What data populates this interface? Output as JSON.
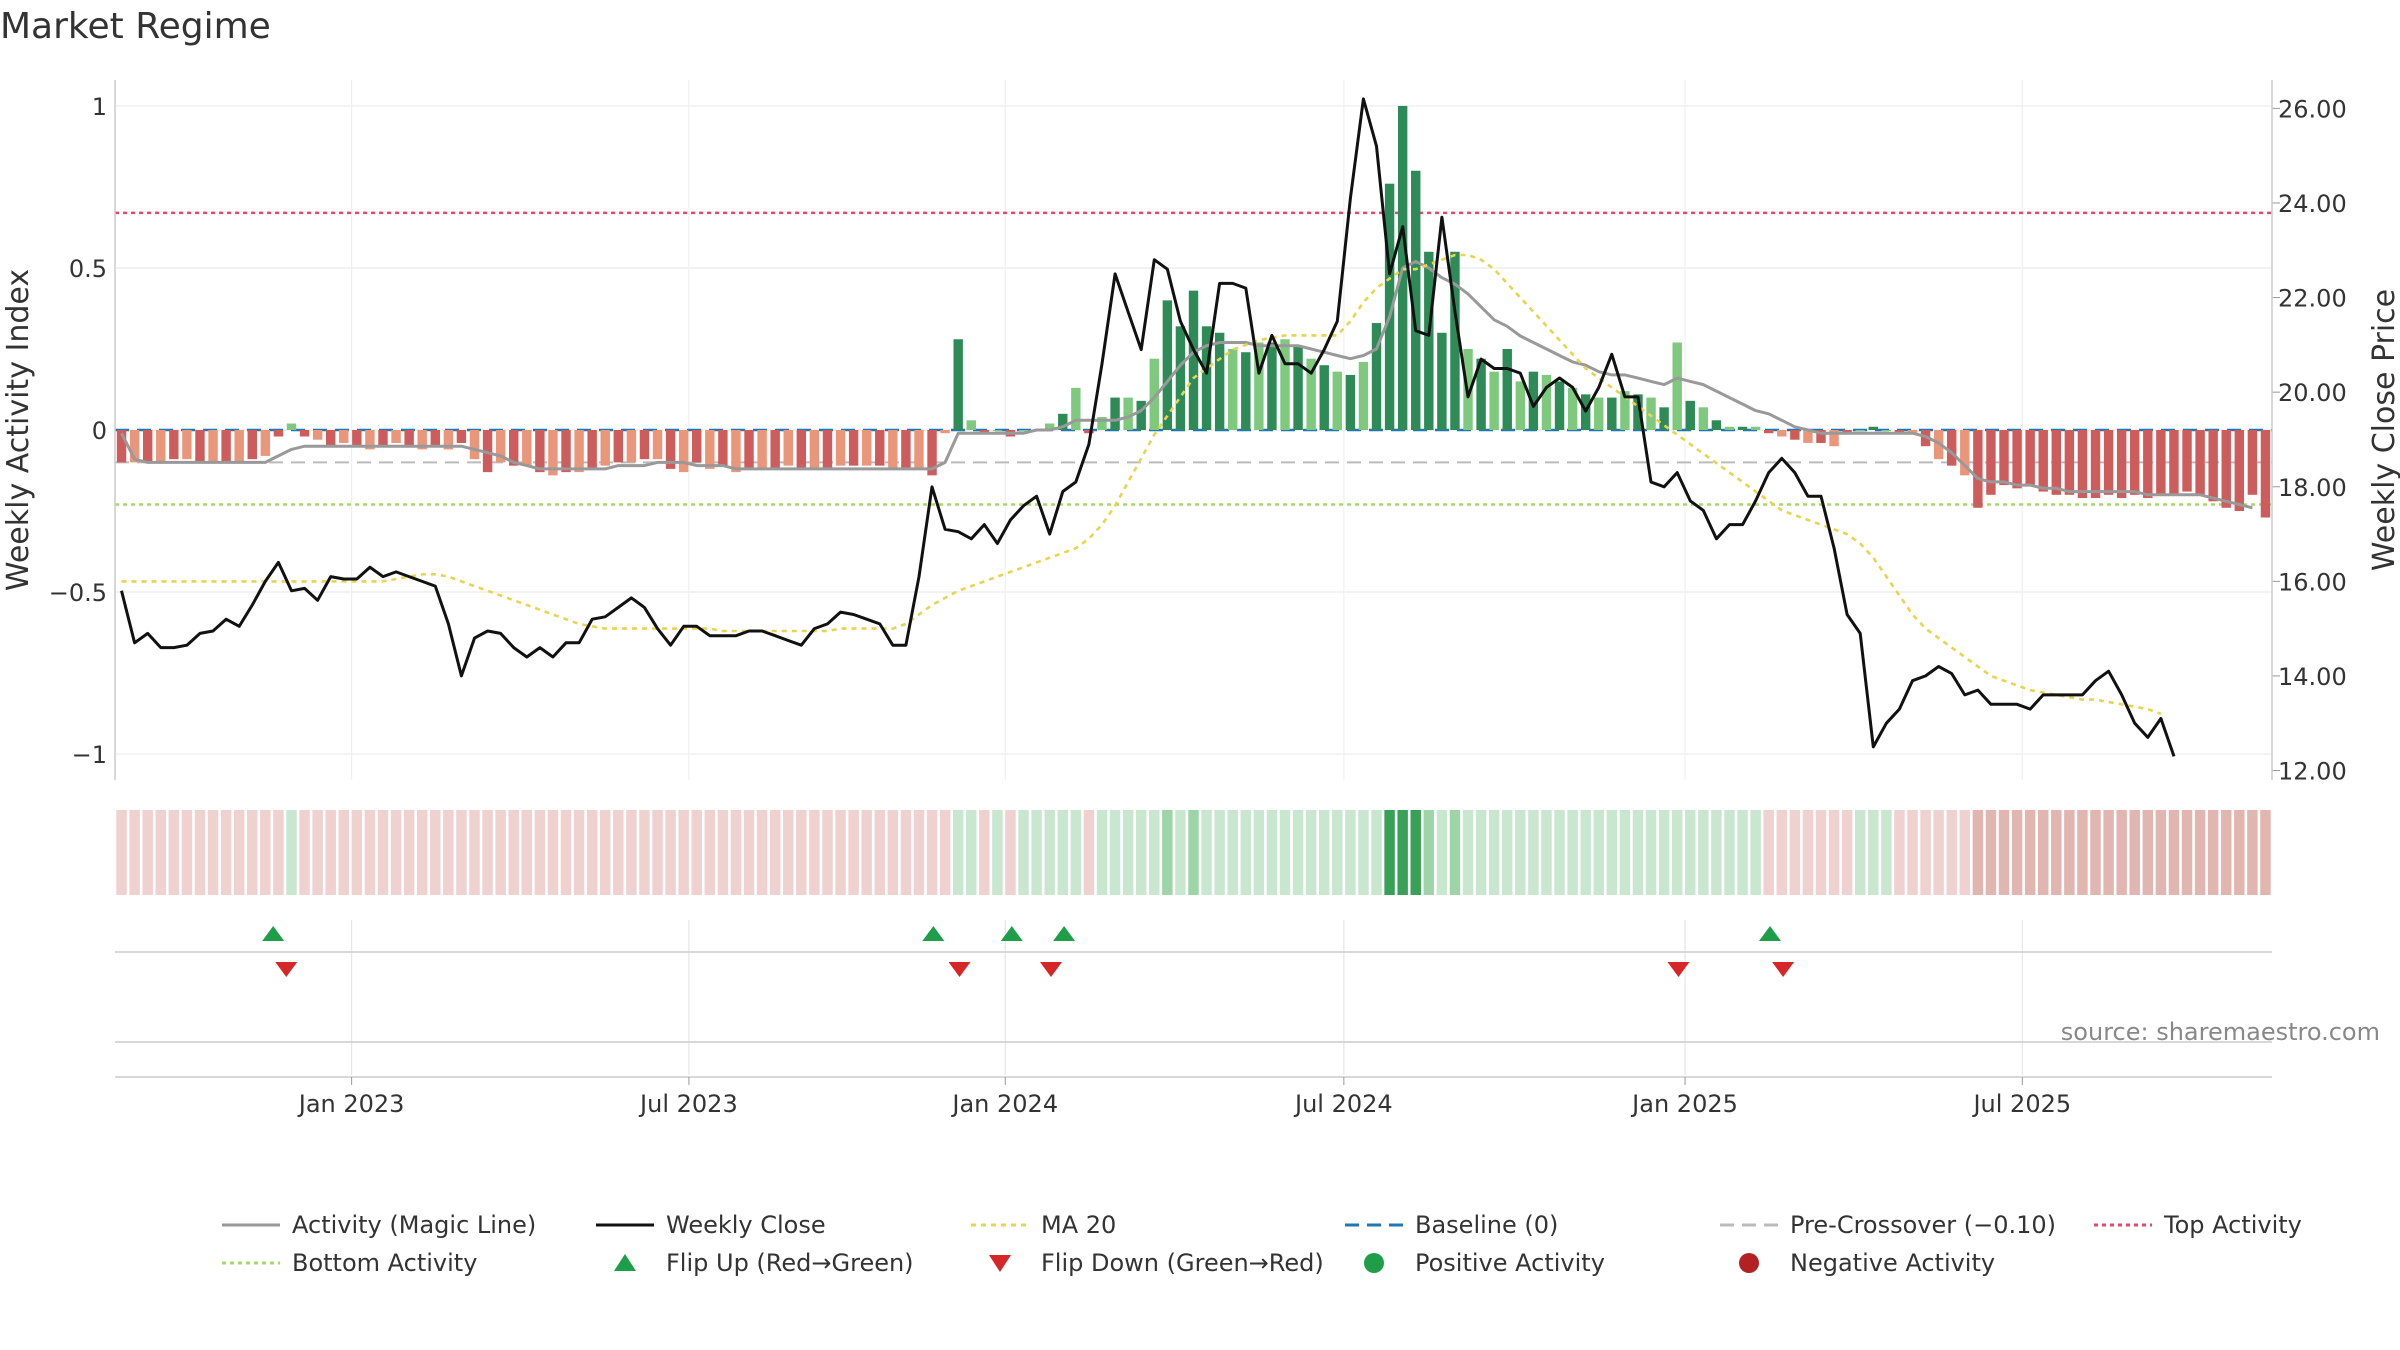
{
  "chart_data": {
    "type": "bar",
    "title": "Market Regime",
    "ylabel": "Weekly Activity Index",
    "y2label": "Weekly Close Price",
    "source": "source: sharemaestro.com",
    "ylim": [
      -1.08,
      1.08
    ],
    "y2lim": [
      11.8,
      26.6
    ],
    "yticks": [
      {
        "v": 1,
        "label": "1"
      },
      {
        "v": 0.5,
        "label": "0.5"
      },
      {
        "v": 0,
        "label": "0"
      },
      {
        "v": -0.5,
        "label": "−0.5"
      },
      {
        "v": -1,
        "label": "−1"
      }
    ],
    "y2ticks": [
      {
        "v": 26,
        "label": "26.00"
      },
      {
        "v": 24,
        "label": "24.00"
      },
      {
        "v": 22,
        "label": "22.00"
      },
      {
        "v": 20,
        "label": "20.00"
      },
      {
        "v": 18,
        "label": "18.00"
      },
      {
        "v": 16,
        "label": "16.00"
      },
      {
        "v": 14,
        "label": "14.00"
      },
      {
        "v": 12,
        "label": "12.00"
      }
    ],
    "xticks": [
      {
        "w": 17.6,
        "label": "Jan 2023"
      },
      {
        "w": 43.4,
        "label": "Jul 2023"
      },
      {
        "w": 67.6,
        "label": "Jan 2024"
      },
      {
        "w": 93.5,
        "label": "Jul 2024"
      },
      {
        "w": 119.6,
        "label": "Jan 2025"
      },
      {
        "w": 145.4,
        "label": "Jul 2025"
      }
    ],
    "reference_lines": {
      "top": 0.67,
      "bottom": -0.23,
      "pre_crossover": -0.1,
      "baseline": 0
    },
    "activity": [
      -0.1,
      -0.1,
      -0.1,
      -0.1,
      -0.09,
      -0.09,
      -0.1,
      -0.1,
      -0.1,
      -0.1,
      -0.09,
      -0.08,
      -0.02,
      0.02,
      -0.02,
      -0.03,
      -0.05,
      -0.04,
      -0.05,
      -0.06,
      -0.05,
      -0.04,
      -0.05,
      -0.06,
      -0.05,
      -0.06,
      -0.04,
      -0.09,
      -0.13,
      -0.1,
      -0.11,
      -0.11,
      -0.13,
      -0.14,
      -0.13,
      -0.13,
      -0.12,
      -0.11,
      -0.1,
      -0.1,
      -0.09,
      -0.09,
      -0.12,
      -0.13,
      -0.1,
      -0.12,
      -0.11,
      -0.13,
      -0.12,
      -0.12,
      -0.12,
      -0.11,
      -0.12,
      -0.12,
      -0.12,
      -0.11,
      -0.11,
      -0.11,
      -0.11,
      -0.12,
      -0.12,
      -0.12,
      -0.14,
      -0.01,
      0.28,
      0.03,
      -0.01,
      0,
      -0.02,
      0,
      0,
      0.02,
      0.05,
      0.13,
      -0.01,
      0.04,
      0.1,
      0.1,
      0.09,
      0.22,
      0.4,
      0.32,
      0.43,
      0.32,
      0.3,
      0.25,
      0.24,
      0.27,
      0.27,
      0.28,
      0.26,
      0.22,
      0.2,
      0.18,
      0.17,
      0.21,
      0.33,
      0.76,
      1.0,
      0.8,
      0.55,
      0.3,
      0.55,
      0.25,
      0.22,
      0.18,
      0.25,
      0.15,
      0.18,
      0.17,
      0.15,
      0.13,
      0.11,
      0.1,
      0.1,
      0.12,
      0.11,
      0.1,
      0.07,
      0.27,
      0.09,
      0.07,
      0.03,
      0.01,
      0.01,
      0.01,
      -0.01,
      -0.02,
      -0.03,
      -0.04,
      -0.04,
      -0.05,
      -0.01,
      0,
      0.01,
      0,
      -0.01,
      -0.01,
      -0.05,
      -0.09,
      -0.11,
      -0.14,
      -0.24,
      -0.2,
      -0.17,
      -0.18,
      -0.17,
      -0.19,
      -0.2,
      -0.2,
      -0.21,
      -0.21,
      -0.2,
      -0.21,
      -0.2,
      -0.21,
      -0.2,
      -0.2,
      -0.19,
      -0.2,
      -0.22,
      -0.24,
      -0.25,
      -0.2,
      -0.27
    ],
    "magic_line": [
      -0.01,
      -0.09,
      -0.1,
      -0.1,
      -0.1,
      -0.1,
      -0.1,
      -0.1,
      -0.1,
      -0.1,
      -0.1,
      -0.1,
      -0.08,
      -0.06,
      -0.05,
      -0.05,
      -0.05,
      -0.05,
      -0.05,
      -0.05,
      -0.05,
      -0.05,
      -0.05,
      -0.05,
      -0.05,
      -0.05,
      -0.05,
      -0.06,
      -0.07,
      -0.08,
      -0.1,
      -0.11,
      -0.12,
      -0.12,
      -0.12,
      -0.12,
      -0.12,
      -0.12,
      -0.11,
      -0.11,
      -0.11,
      -0.1,
      -0.1,
      -0.1,
      -0.11,
      -0.11,
      -0.11,
      -0.12,
      -0.12,
      -0.12,
      -0.12,
      -0.12,
      -0.12,
      -0.12,
      -0.12,
      -0.12,
      -0.12,
      -0.12,
      -0.12,
      -0.12,
      -0.12,
      -0.12,
      -0.12,
      -0.1,
      -0.01,
      -0.01,
      -0.01,
      -0.01,
      -0.01,
      -0.01,
      0,
      0,
      0.01,
      0.03,
      0.03,
      0.03,
      0.03,
      0.04,
      0.06,
      0.1,
      0.15,
      0.2,
      0.24,
      0.26,
      0.27,
      0.27,
      0.27,
      0.26,
      0.26,
      0.26,
      0.26,
      0.25,
      0.24,
      0.23,
      0.22,
      0.23,
      0.25,
      0.35,
      0.5,
      0.52,
      0.5,
      0.47,
      0.45,
      0.42,
      0.38,
      0.34,
      0.32,
      0.29,
      0.27,
      0.25,
      0.23,
      0.21,
      0.2,
      0.18,
      0.17,
      0.17,
      0.16,
      0.15,
      0.14,
      0.16,
      0.15,
      0.14,
      0.12,
      0.1,
      0.08,
      0.06,
      0.05,
      0.03,
      0.01,
      0,
      -0.01,
      -0.01,
      -0.01,
      -0.01,
      -0.01,
      -0.01,
      -0.01,
      -0.01,
      -0.02,
      -0.04,
      -0.07,
      -0.11,
      -0.15,
      -0.16,
      -0.16,
      -0.17,
      -0.17,
      -0.18,
      -0.18,
      -0.19,
      -0.19,
      -0.19,
      -0.19,
      -0.19,
      -0.19,
      -0.2,
      -0.2,
      -0.2,
      -0.2,
      -0.2,
      -0.21,
      -0.22,
      -0.23,
      -0.24
    ],
    "weekly_close": [
      15.8,
      14.7,
      14.9,
      14.6,
      14.6,
      14.65,
      14.9,
      14.95,
      15.2,
      15.05,
      15.5,
      16.0,
      16.4,
      15.8,
      15.85,
      15.6,
      16.1,
      16.05,
      16.05,
      16.3,
      16.1,
      16.2,
      16.1,
      16.0,
      15.9,
      15.1,
      14.0,
      14.8,
      14.95,
      14.9,
      14.6,
      14.4,
      14.6,
      14.4,
      14.7,
      14.7,
      15.2,
      15.25,
      15.45,
      15.65,
      15.45,
      15.0,
      14.65,
      15.05,
      15.05,
      14.85,
      14.85,
      14.85,
      14.95,
      14.95,
      14.85,
      14.75,
      14.65,
      15.0,
      15.1,
      15.35,
      15.3,
      15.2,
      15.1,
      14.65,
      14.65,
      16.1,
      18.0,
      17.1,
      17.05,
      16.9,
      17.2,
      16.8,
      17.3,
      17.6,
      17.8,
      17.0,
      17.9,
      18.1,
      18.9,
      20.6,
      22.5,
      21.7,
      20.9,
      22.8,
      22.6,
      21.5,
      20.9,
      20.4,
      22.3,
      22.3,
      22.2,
      20.4,
      21.2,
      20.6,
      20.6,
      20.4,
      20.9,
      21.5,
      24.1,
      26.2,
      25.2,
      22.5,
      23.5,
      21.3,
      21.2,
      23.7,
      21.7,
      19.9,
      20.7,
      20.5,
      20.5,
      20.4,
      19.7,
      20.1,
      20.3,
      20.1,
      19.6,
      20.1,
      20.8,
      19.9,
      19.9,
      18.1,
      18.0,
      18.3,
      17.7,
      17.5,
      16.9,
      17.2,
      17.2,
      17.7,
      18.3,
      18.6,
      18.3,
      17.8,
      17.8,
      16.7,
      15.3,
      14.9,
      12.5,
      13.0,
      13.3,
      13.9,
      14.0,
      14.2,
      14.05,
      13.6,
      13.7,
      13.4,
      13.4,
      13.4,
      13.3,
      13.6,
      13.6,
      13.6,
      13.6,
      13.9,
      14.1,
      13.6,
      13.0,
      12.7,
      13.1,
      12.3
    ],
    "ma20": [
      16.0,
      16.0,
      16.0,
      16.0,
      16.0,
      16.0,
      16.0,
      16.0,
      16.0,
      16.0,
      16.0,
      16.0,
      16.0,
      16.0,
      16.0,
      16.0,
      16.0,
      16.0,
      16.0,
      16.0,
      16.0,
      16.05,
      16.1,
      16.15,
      16.15,
      16.1,
      16.0,
      15.9,
      15.8,
      15.7,
      15.6,
      15.5,
      15.4,
      15.3,
      15.2,
      15.1,
      15.05,
      15.0,
      15.0,
      15.0,
      15.0,
      15.0,
      15.0,
      15.0,
      15.0,
      15.0,
      14.95,
      14.95,
      14.95,
      14.95,
      14.95,
      14.95,
      14.95,
      14.95,
      14.95,
      15.0,
      15.0,
      15.0,
      15.0,
      15.0,
      15.1,
      15.3,
      15.5,
      15.65,
      15.8,
      15.9,
      16.0,
      16.1,
      16.2,
      16.3,
      16.4,
      16.5,
      16.6,
      16.7,
      16.9,
      17.2,
      17.6,
      18.1,
      18.6,
      19.1,
      19.5,
      19.9,
      20.3,
      20.5,
      20.7,
      20.9,
      21.0,
      21.1,
      21.15,
      21.2,
      21.2,
      21.2,
      21.2,
      21.2,
      21.5,
      21.9,
      22.2,
      22.4,
      22.6,
      22.6,
      22.7,
      22.8,
      22.9,
      22.9,
      22.8,
      22.6,
      22.3,
      22.0,
      21.7,
      21.4,
      21.1,
      20.8,
      20.5,
      20.3,
      20.1,
      19.9,
      19.7,
      19.5,
      19.3,
      19.1,
      18.9,
      18.7,
      18.5,
      18.3,
      18.1,
      17.9,
      17.7,
      17.5,
      17.4,
      17.3,
      17.2,
      17.1,
      17.0,
      16.8,
      16.5,
      16.1,
      15.7,
      15.3,
      15.0,
      14.8,
      14.6,
      14.4,
      14.2,
      14.0,
      13.9,
      13.8,
      13.7,
      13.65,
      13.6,
      13.55,
      13.5,
      13.5,
      13.45,
      13.4,
      13.35,
      13.3,
      13.2
    ],
    "flip_up_weeks": [
      11.6,
      62.1,
      68.1,
      72.1,
      126.1
    ],
    "flip_down_weeks": [
      12.6,
      64.1,
      71.1,
      119.1,
      127.1
    ],
    "colors": {
      "strong_green": "#2e8b57",
      "light_green": "#7fc97f",
      "strong_red": "#cd5c5c",
      "light_red": "#e9967a",
      "close": "#111111",
      "magic": "#999999",
      "ma20": "#e8d44d",
      "baseline": "#1f77b4",
      "pre_crossover": "#bbbbbb",
      "top": "#e8466a",
      "bottom": "#a6d96a",
      "flip_up": "#1f9e4a",
      "flip_down": "#d62728",
      "positive": "#1f9e4a",
      "negative": "#b22222"
    },
    "legend": [
      {
        "label": "Activity (Magic Line)",
        "kind": "line",
        "color": "#999999",
        "dash": ""
      },
      {
        "label": "Weekly Close",
        "kind": "line",
        "color": "#111111",
        "dash": ""
      },
      {
        "label": "MA 20",
        "kind": "line",
        "color": "#e8d44d",
        "dash": "5,5"
      },
      {
        "label": "Baseline (0)",
        "kind": "line",
        "color": "#1f77b4",
        "dash": "14,8"
      },
      {
        "label": "Pre-Crossover (−0.10)",
        "kind": "line",
        "color": "#bbbbbb",
        "dash": "14,8"
      },
      {
        "label": "Top Activity",
        "kind": "line",
        "color": "#e8466a",
        "dash": "4,4"
      },
      {
        "label": "Bottom Activity",
        "kind": "line",
        "color": "#a6d96a",
        "dash": "4,4"
      },
      {
        "label": "Flip Up (Red→Green)",
        "kind": "up",
        "color": "#1f9e4a",
        "dash": ""
      },
      {
        "label": "Flip Down (Green→Red)",
        "kind": "down",
        "color": "#d62728",
        "dash": ""
      },
      {
        "label": "Positive Activity",
        "kind": "dot",
        "color": "#1f9e4a",
        "dash": ""
      },
      {
        "label": "Negative Activity",
        "kind": "dot",
        "color": "#b22222",
        "dash": ""
      }
    ]
  }
}
